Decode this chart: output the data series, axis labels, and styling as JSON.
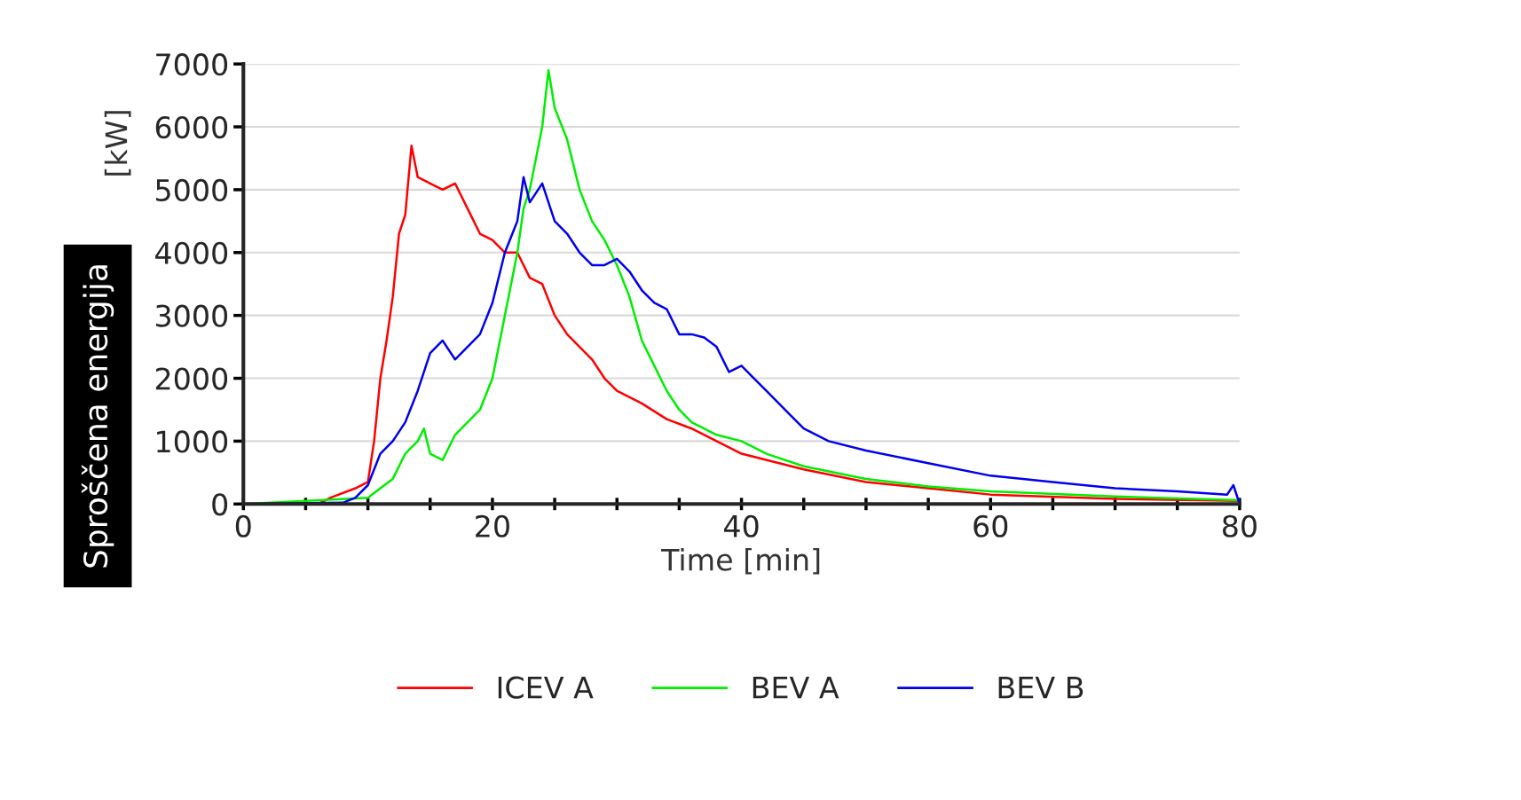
{
  "chart_data": {
    "type": "line",
    "xlabel": "Time [min]",
    "ylabel": "Sproščena energija",
    "annotations": [
      "[kW]"
    ],
    "xlim": [
      0,
      80
    ],
    "ylim": [
      0,
      7000
    ],
    "xticks": [
      0,
      {
        "value": 5,
        "label": null
      },
      {
        "value": 10,
        "label": null
      },
      {
        "value": 15,
        "label": null
      },
      20,
      {
        "value": 25,
        "label": null
      },
      {
        "value": 30,
        "label": null
      },
      {
        "value": 35,
        "label": null
      },
      40,
      {
        "value": 45,
        "label": null
      },
      {
        "value": 50,
        "label": null
      },
      {
        "value": 55,
        "label": null
      },
      60,
      {
        "value": 65,
        "label": null
      },
      {
        "value": 70,
        "label": null
      },
      {
        "value": 75,
        "label": null
      },
      80
    ],
    "yticks": [
      0,
      1000,
      2000,
      3000,
      4000,
      5000,
      6000,
      7000
    ],
    "grid": "y",
    "legend": "bottom",
    "marker": "none",
    "line_style": "solid",
    "series": [
      {
        "name": "ICEV A",
        "color": "#ff0000",
        "x": [
          0,
          6,
          7,
          9,
          10,
          10.5,
          11,
          11.5,
          12,
          12.5,
          13,
          13.5,
          14,
          15,
          16,
          17,
          18,
          19,
          20,
          21,
          22,
          23,
          24,
          25,
          26,
          27,
          28,
          29,
          30,
          32,
          34,
          36,
          38,
          40,
          45,
          50,
          55,
          60,
          70,
          80
        ],
        "values": [
          0,
          0,
          100,
          250,
          350,
          1000,
          2000,
          2600,
          3300,
          4300,
          4600,
          5700,
          5200,
          5100,
          5000,
          5100,
          4700,
          4300,
          4200,
          4000,
          4000,
          3600,
          3500,
          3000,
          2700,
          2500,
          2300,
          2000,
          1800,
          1600,
          1350,
          1200,
          1000,
          800,
          550,
          350,
          250,
          150,
          80,
          50
        ]
      },
      {
        "name": "BEV A",
        "color": "#00ee00",
        "x": [
          0,
          8,
          10,
          11,
          12,
          13,
          14,
          14.5,
          15,
          16,
          17,
          18,
          19,
          20,
          21,
          22,
          22.5,
          23,
          24,
          24.5,
          25,
          26,
          27,
          28,
          29,
          30,
          31,
          32,
          33,
          34,
          35,
          36,
          38,
          40,
          42,
          45,
          50,
          55,
          60,
          70,
          80
        ],
        "values": [
          0,
          null,
          100,
          250,
          400,
          800,
          1000,
          1200,
          800,
          700,
          1100,
          1300,
          1500,
          2000,
          3000,
          4000,
          4700,
          5000,
          6000,
          6900,
          6300,
          5800,
          5000,
          4500,
          4200,
          3800,
          3300,
          2600,
          2200,
          1800,
          1500,
          1300,
          1100,
          1000,
          800,
          600,
          400,
          280,
          200,
          120,
          60
        ]
      },
      {
        "name": "BEV B",
        "color": "#0000ee",
        "x": [
          0,
          8,
          9,
          10,
          11,
          12,
          13,
          14,
          15,
          16,
          17,
          18,
          19,
          20,
          21,
          22,
          22.5,
          23,
          24,
          25,
          26,
          27,
          28,
          29,
          30,
          31,
          32,
          33,
          34,
          35,
          36,
          37,
          38,
          39,
          40,
          41,
          42,
          43,
          44,
          45,
          47,
          50,
          55,
          60,
          65,
          70,
          75,
          79,
          79.5,
          80
        ],
        "values": [
          0,
          20,
          100,
          300,
          800,
          1000,
          1300,
          1800,
          2400,
          2600,
          2300,
          2500,
          2700,
          3200,
          4000,
          4500,
          5200,
          4800,
          5100,
          4500,
          4300,
          4000,
          3800,
          3800,
          3900,
          3700,
          3400,
          3200,
          3100,
          2700,
          2700,
          2650,
          2500,
          2100,
          2200,
          2000,
          1800,
          1600,
          1400,
          1200,
          1000,
          850,
          650,
          450,
          350,
          250,
          200,
          150,
          300,
          0
        ]
      }
    ]
  }
}
